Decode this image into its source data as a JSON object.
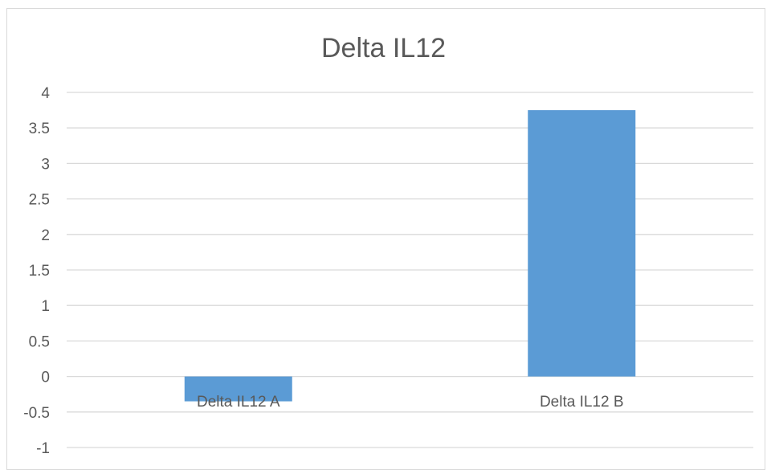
{
  "chart_data": {
    "type": "bar",
    "title": "Delta IL12",
    "categories": [
      "Delta IL12 A",
      "Delta IL12 B"
    ],
    "values": [
      -0.35,
      3.75
    ],
    "ylim": [
      -1,
      4
    ],
    "yticks": [
      -1,
      -0.5,
      0,
      0.5,
      1,
      1.5,
      2,
      2.5,
      3,
      3.5,
      4
    ],
    "ytick_labels": [
      "-1",
      "-0.5",
      "0",
      "0.5",
      "1",
      "1.5",
      "2",
      "2.5",
      "3",
      "3.5",
      "4"
    ],
    "xlabel": "",
    "ylabel": "",
    "grid": true,
    "legend": "none",
    "bar_color": "#5b9bd5",
    "grid_color": "#d9d9d9",
    "text_color": "#595959"
  }
}
